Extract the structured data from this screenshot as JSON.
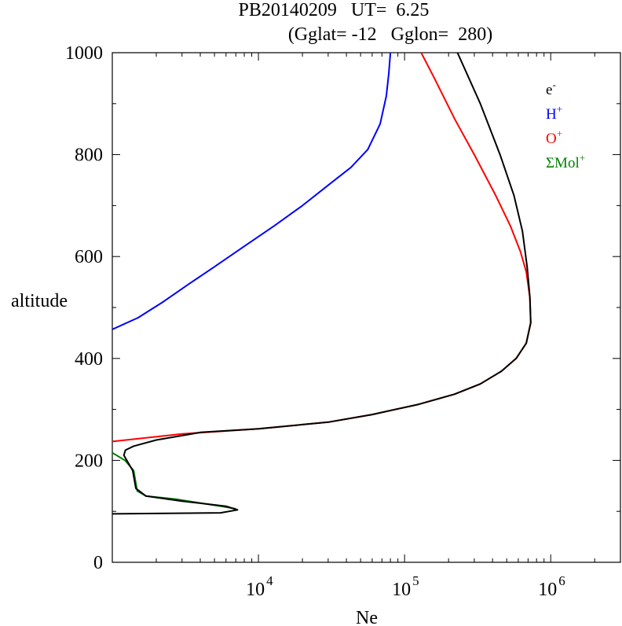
{
  "chart_data": {
    "type": "line",
    "title_line1": "PB20140209   UT=  6.25",
    "title_line2": "(Gglat= -12   Gglon=  280)",
    "xlabel": "Ne",
    "ylabel": "altitude",
    "x_scale": "log",
    "xlim": [
      1000,
      3000000
    ],
    "ylim": [
      0,
      1000
    ],
    "x_ticks": [
      {
        "value": 10000,
        "base": "10",
        "exp": "4"
      },
      {
        "value": 100000,
        "base": "10",
        "exp": "5"
      },
      {
        "value": 1000000,
        "base": "10",
        "exp": "6"
      }
    ],
    "y_ticks": [
      "0",
      "200",
      "400",
      "600",
      "800",
      "1000"
    ],
    "grid": false,
    "legend_position": "top-right",
    "legend": [
      {
        "base": "e",
        "sup": "-",
        "color": "#000000"
      },
      {
        "base": "H",
        "sup": "+",
        "color": "#0000ff"
      },
      {
        "base": "O",
        "sup": "+",
        "color": "#ff0000"
      },
      {
        "base": "ΣMol",
        "sup": "+",
        "color": "#008000"
      }
    ],
    "series": [
      {
        "name": "ΣMol+",
        "color": "#008000",
        "points": [
          [
            7000,
            105
          ],
          [
            5500,
            110
          ],
          [
            2700,
            124
          ],
          [
            1700,
            130
          ],
          [
            1480,
            140
          ],
          [
            1400,
            180
          ],
          [
            1220,
            200
          ],
          [
            1000,
            215
          ]
        ]
      },
      {
        "name": "H+",
        "color": "#0000ff",
        "points": [
          [
            1000,
            457
          ],
          [
            1500,
            480
          ],
          [
            2200,
            510
          ],
          [
            3300,
            545
          ],
          [
            5000,
            580
          ],
          [
            8000,
            620
          ],
          [
            12800,
            660
          ],
          [
            20000,
            700
          ],
          [
            31600,
            745
          ],
          [
            43000,
            775
          ],
          [
            56000,
            810
          ],
          [
            68000,
            860
          ],
          [
            75000,
            915
          ],
          [
            78000,
            960
          ],
          [
            80000,
            1000
          ]
        ]
      },
      {
        "name": "O+",
        "color": "#ff0000",
        "points": [
          [
            1000,
            237
          ],
          [
            3000,
            252
          ],
          [
            10000,
            262
          ],
          [
            30000,
            275
          ],
          [
            60000,
            290
          ],
          [
            125000,
            310
          ],
          [
            220000,
            330
          ],
          [
            330000,
            350
          ],
          [
            460000,
            375
          ],
          [
            580000,
            400
          ],
          [
            680000,
            430
          ],
          [
            730000,
            470
          ],
          [
            720000,
            520
          ],
          [
            680000,
            570
          ],
          [
            620000,
            610
          ],
          [
            530000,
            660
          ],
          [
            420000,
            720
          ],
          [
            300000,
            800
          ],
          [
            220000,
            870
          ],
          [
            160000,
            950
          ],
          [
            130000,
            1000
          ]
        ]
      },
      {
        "name": "e-",
        "color": "#000000",
        "points": [
          [
            1000,
            95
          ],
          [
            5500,
            97
          ],
          [
            7200,
            103
          ],
          [
            6000,
            110
          ],
          [
            3000,
            120
          ],
          [
            1700,
            130
          ],
          [
            1450,
            145
          ],
          [
            1380,
            180
          ],
          [
            1200,
            210
          ],
          [
            1230,
            220
          ],
          [
            1400,
            228
          ],
          [
            2000,
            240
          ],
          [
            4000,
            255
          ],
          [
            10000,
            262
          ],
          [
            30000,
            275
          ],
          [
            60000,
            290
          ],
          [
            125000,
            310
          ],
          [
            220000,
            330
          ],
          [
            330000,
            350
          ],
          [
            460000,
            375
          ],
          [
            580000,
            400
          ],
          [
            680000,
            430
          ],
          [
            730000,
            470
          ],
          [
            720000,
            520
          ],
          [
            690000,
            580
          ],
          [
            640000,
            650
          ],
          [
            560000,
            720
          ],
          [
            450000,
            800
          ],
          [
            330000,
            900
          ],
          [
            230000,
            1000
          ]
        ]
      }
    ]
  }
}
